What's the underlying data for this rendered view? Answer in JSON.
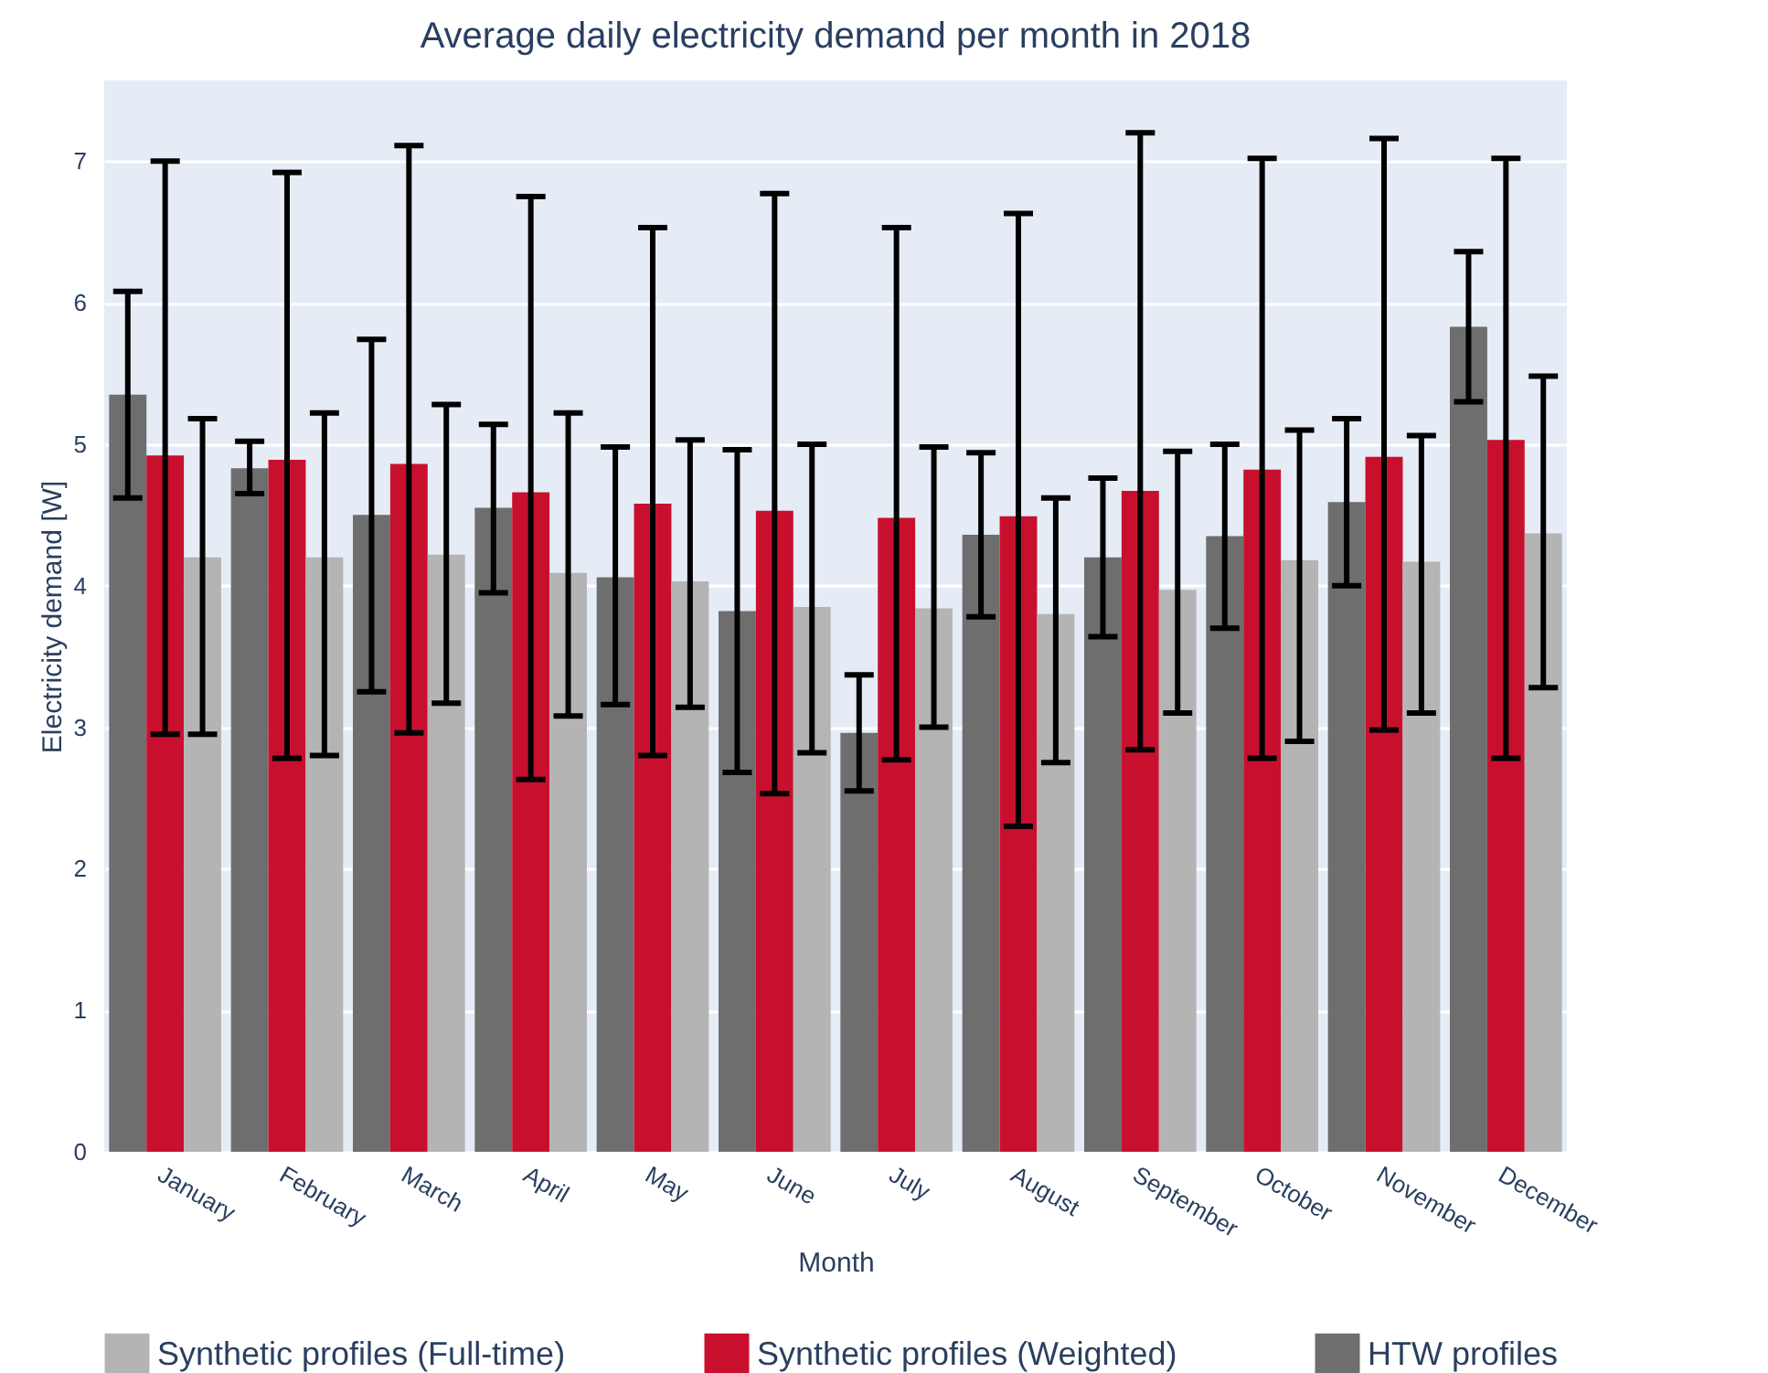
{
  "chart_data": {
    "type": "bar",
    "title": "Average daily electricity demand per month in 2018",
    "xlabel": "Month",
    "ylabel": "Electricity demand [W]",
    "categories": [
      "January",
      "February",
      "March",
      "April",
      "May",
      "June",
      "July",
      "August",
      "September",
      "October",
      "November",
      "December"
    ],
    "series": [
      {
        "name": "HTW profiles",
        "color": "#6e6e6e",
        "values": [
          5.35,
          4.83,
          4.5,
          4.55,
          4.06,
          3.82,
          2.96,
          4.36,
          4.2,
          4.35,
          4.59,
          5.83
        ],
        "errors": [
          [
            4.62,
            6.08
          ],
          [
            4.65,
            5.02
          ],
          [
            3.25,
            5.74
          ],
          [
            3.95,
            5.14
          ],
          [
            3.16,
            4.98
          ],
          [
            2.68,
            4.96
          ],
          [
            2.55,
            3.37
          ],
          [
            3.78,
            4.94
          ],
          [
            3.64,
            4.76
          ],
          [
            3.7,
            5.0
          ],
          [
            4.0,
            5.18
          ],
          [
            5.3,
            6.36
          ]
        ]
      },
      {
        "name": "Synthetic profiles (Weighted)",
        "color": "#c8102e",
        "values": [
          4.92,
          4.89,
          4.86,
          4.66,
          4.58,
          4.53,
          4.48,
          4.49,
          4.67,
          4.82,
          4.91,
          5.03
        ],
        "errors": [
          [
            2.95,
            7.0
          ],
          [
            2.78,
            6.92
          ],
          [
            2.96,
            7.11
          ],
          [
            2.63,
            6.75
          ],
          [
            2.8,
            6.53
          ],
          [
            2.53,
            6.77
          ],
          [
            2.77,
            6.53
          ],
          [
            2.3,
            6.63
          ],
          [
            2.84,
            7.2
          ],
          [
            2.78,
            7.02
          ],
          [
            2.98,
            7.16
          ],
          [
            2.78,
            7.02
          ]
        ]
      },
      {
        "name": "Synthetic profiles (Full-time)",
        "color": "#b4b4b4",
        "values": [
          4.2,
          4.2,
          4.22,
          4.09,
          4.03,
          3.85,
          3.84,
          3.8,
          3.97,
          4.18,
          4.17,
          4.37
        ],
        "errors": [
          [
            2.95,
            5.18
          ],
          [
            2.8,
            5.22
          ],
          [
            3.17,
            5.28
          ],
          [
            3.08,
            5.22
          ],
          [
            3.14,
            5.03
          ],
          [
            2.82,
            5.0
          ],
          [
            3.0,
            4.98
          ],
          [
            2.75,
            4.62
          ],
          [
            3.1,
            4.95
          ],
          [
            2.9,
            5.1
          ],
          [
            3.1,
            5.06
          ],
          [
            3.28,
            5.48
          ]
        ]
      }
    ],
    "ylim": [
      0,
      7.57
    ],
    "yticks": [
      0,
      1,
      2,
      3,
      4,
      5,
      6,
      7
    ],
    "grid": "y",
    "legend": "bottom"
  }
}
